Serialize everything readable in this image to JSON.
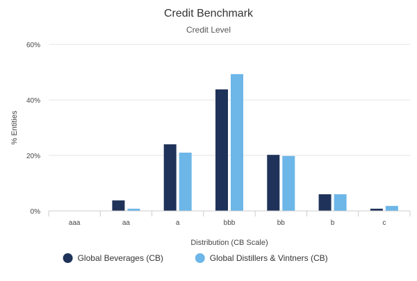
{
  "chart_data": {
    "type": "bar",
    "title": "Credit Benchmark",
    "subtitle": "Credit Level",
    "xlabel": "Distribution (CB Scale)",
    "ylabel": "% Entities",
    "categories": [
      "aaa",
      "aa",
      "a",
      "bbb",
      "bb",
      "b",
      "c"
    ],
    "series": [
      {
        "name": "Global Beverages (CB)",
        "color": "#1f3259",
        "values": [
          0,
          3.8,
          24,
          43.8,
          20.2,
          6,
          0.8
        ]
      },
      {
        "name": "Global Distillers & Vintners (CB)",
        "color": "#6db6e8",
        "values": [
          0,
          0.8,
          21,
          49.3,
          19.8,
          6,
          1.8
        ]
      }
    ],
    "ylim": [
      0,
      60
    ],
    "yticks": [
      0,
      20,
      40,
      60
    ],
    "ytick_labels": [
      "0%",
      "20%",
      "40%",
      "60%"
    ],
    "grid": true,
    "legend_position": "bottom"
  }
}
